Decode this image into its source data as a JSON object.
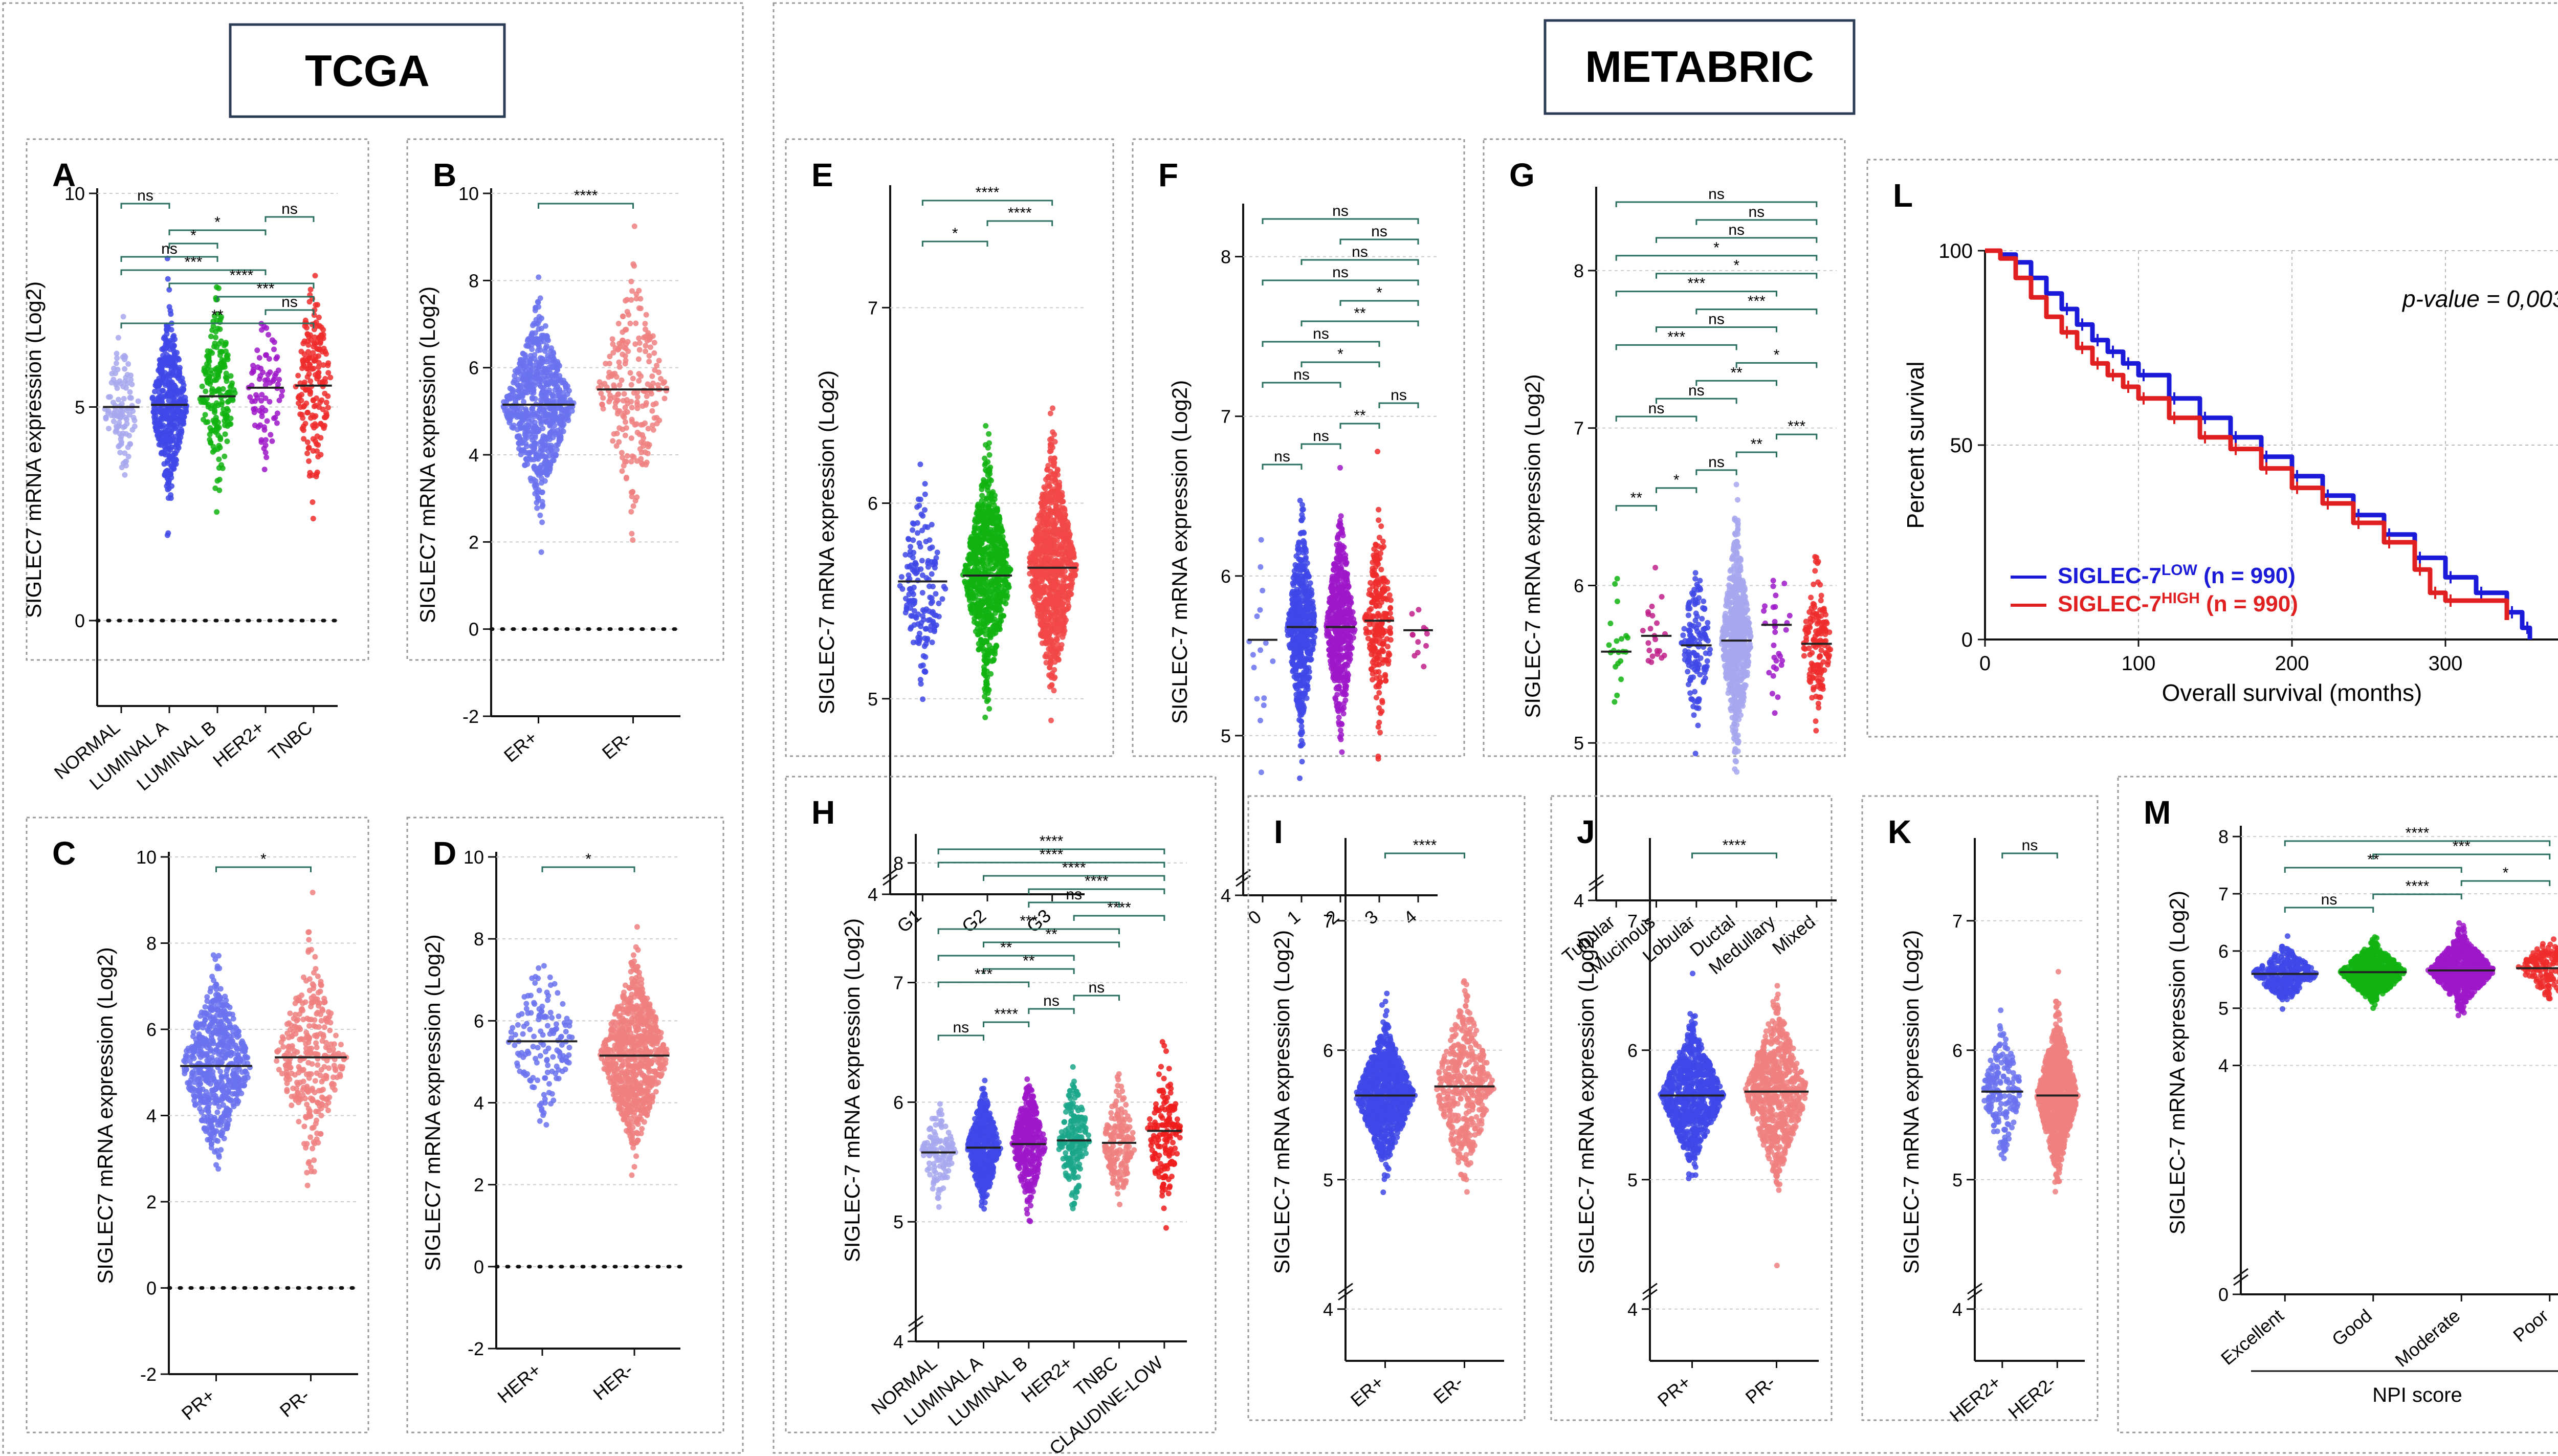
{
  "headers": {
    "tcga": "TCGA",
    "metabric": "METABRIC"
  },
  "colors": {
    "normal": "#a7a7ee",
    "luminal_a": "#3f48e8",
    "luminal_b": "#11b311",
    "her2": "#9e18c9",
    "tnbc": "#ef2c2c",
    "light_blue": "#6a72ee",
    "light_red": "#f08080",
    "g_red": "#f24848",
    "claudin": "#ee1c1c",
    "km_low": "#1a1ad8",
    "km_high": "#e02020",
    "teal": "#1aa68a",
    "pink": "#c0208a"
  },
  "chart_data": [
    {
      "id": "A",
      "type": "scatter",
      "letter": "A",
      "ylabel": "SIGLEC7 mRNA expression (Log2)",
      "ylim": [
        -2,
        10
      ],
      "yticks": [
        0,
        5,
        10
      ],
      "zero_line": true,
      "categories": [
        "NORMAL",
        "LUMINAL A",
        "LUMINAL B",
        "HER2+",
        "TNBC"
      ],
      "medians": [
        5.0,
        5.05,
        5.25,
        5.45,
        5.5
      ],
      "sds": [
        0.8,
        0.9,
        0.95,
        0.9,
        1.1
      ],
      "ns": [
        110,
        480,
        200,
        80,
        190
      ],
      "series_colors": [
        "normal",
        "luminal_a",
        "luminal_b",
        "her2",
        "tnbc"
      ],
      "comparisons": [
        {
          "a": 0,
          "b": 4,
          "label": "**"
        },
        {
          "a": 3,
          "b": 4,
          "label": "ns"
        },
        {
          "a": 2,
          "b": 4,
          "label": "***"
        },
        {
          "a": 1,
          "b": 4,
          "label": "****"
        },
        {
          "a": 0,
          "b": 3,
          "label": "***"
        },
        {
          "a": 0,
          "b": 2,
          "label": "ns"
        },
        {
          "a": 1,
          "b": 2,
          "label": "*"
        },
        {
          "a": 1,
          "b": 3,
          "label": "*"
        },
        {
          "a": 3,
          "b": 4,
          "label": "ns"
        },
        {
          "a": 0,
          "b": 1,
          "label": "ns"
        }
      ]
    },
    {
      "id": "B",
      "type": "scatter",
      "letter": "B",
      "ylabel": "SIGLEC7 mRNA expression (Log2)",
      "ylim": [
        -2,
        10
      ],
      "yticks": [
        -2,
        0,
        2,
        4,
        6,
        8,
        10
      ],
      "zero_line": true,
      "categories": [
        "ER+",
        "ER-"
      ],
      "medians": [
        5.15,
        5.5
      ],
      "sds": [
        0.9,
        1.1
      ],
      "ns": [
        700,
        230
      ],
      "series_colors": [
        "light_blue",
        "light_red"
      ],
      "comparisons": [
        {
          "a": 0,
          "b": 1,
          "label": "****"
        }
      ]
    },
    {
      "id": "C",
      "type": "scatter",
      "letter": "C",
      "ylabel": "SIGLEC7 mRNA expression (Log2)",
      "ylim": [
        -2,
        10
      ],
      "yticks": [
        -2,
        0,
        2,
        4,
        6,
        8,
        10
      ],
      "zero_line": true,
      "categories": [
        "PR+",
        "PR-"
      ],
      "medians": [
        5.15,
        5.35
      ],
      "sds": [
        0.9,
        1.0
      ],
      "ns": [
        600,
        330
      ],
      "series_colors": [
        "light_blue",
        "light_red"
      ],
      "comparisons": [
        {
          "a": 0,
          "b": 1,
          "label": "*"
        }
      ]
    },
    {
      "id": "D",
      "type": "scatter",
      "letter": "D",
      "ylabel": "SIGLEC7 mRNA expression (Log2)",
      "ylim": [
        -2,
        10
      ],
      "yticks": [
        -2,
        0,
        2,
        4,
        6,
        8,
        10
      ],
      "zero_line": true,
      "categories": [
        "HER+",
        "HER-"
      ],
      "medians": [
        5.5,
        5.15
      ],
      "sds": [
        0.9,
        0.95
      ],
      "ns": [
        150,
        780
      ],
      "series_colors": [
        "light_blue",
        "light_red"
      ],
      "comparisons": [
        {
          "a": 0,
          "b": 1,
          "label": "*"
        }
      ]
    },
    {
      "id": "E",
      "type": "scatter",
      "letter": "E",
      "ylabel": "SIGLEC-7 mRNA expression (Log2)",
      "ylim": [
        4,
        7.6
      ],
      "yticks": [
        4,
        5,
        6,
        7
      ],
      "break_axis": true,
      "categories": [
        "G1",
        "G2",
        "G3"
      ],
      "medians": [
        5.6,
        5.63,
        5.67
      ],
      "sds": [
        0.22,
        0.24,
        0.26
      ],
      "ns": [
        160,
        760,
        900
      ],
      "series_colors": [
        "luminal_a",
        "luminal_b",
        "g_red"
      ],
      "comparisons": [
        {
          "a": 0,
          "b": 1,
          "label": "*"
        },
        {
          "a": 1,
          "b": 2,
          "label": "****"
        },
        {
          "a": 0,
          "b": 2,
          "label": "****"
        }
      ]
    },
    {
      "id": "F",
      "type": "scatter",
      "letter": "F",
      "ylabel": "SIGLEC-7 mRNA expression (Log2)",
      "ylim": [
        4,
        8.3
      ],
      "yticks": [
        4,
        5,
        6,
        7,
        8
      ],
      "break_axis": true,
      "categories": [
        "0",
        "1",
        "2",
        "3",
        "4"
      ],
      "medians": [
        5.6,
        5.68,
        5.68,
        5.72,
        5.66
      ],
      "sds": [
        0.25,
        0.28,
        0.28,
        0.28,
        0.15
      ],
      "ns": [
        16,
        560,
        500,
        230,
        12
      ],
      "series_colors": [
        "light_blue",
        "luminal_a",
        "her2",
        "tnbc",
        "pink"
      ],
      "comparisons": [
        {
          "a": 0,
          "b": 1,
          "label": "ns"
        },
        {
          "a": 1,
          "b": 2,
          "label": "ns"
        },
        {
          "a": 2,
          "b": 3,
          "label": "**"
        },
        {
          "a": 3,
          "b": 4,
          "label": "ns"
        },
        {
          "a": 0,
          "b": 2,
          "label": "ns"
        },
        {
          "a": 1,
          "b": 3,
          "label": "*"
        },
        {
          "a": 0,
          "b": 3,
          "label": "ns"
        },
        {
          "a": 1,
          "b": 4,
          "label": "**"
        },
        {
          "a": 2,
          "b": 4,
          "label": "*"
        },
        {
          "a": 0,
          "b": 4,
          "label": "ns"
        },
        {
          "a": 1,
          "b": 4,
          "label": "ns"
        },
        {
          "a": 2,
          "b": 4,
          "label": "ns"
        },
        {
          "a": 0,
          "b": 4,
          "label": "ns"
        }
      ]
    },
    {
      "id": "G",
      "type": "scatter",
      "letter": "G",
      "ylabel": "SIGLEC-7 mRNA expression (Log2)",
      "ylim": [
        4,
        8.5
      ],
      "yticks": [
        4,
        5,
        6,
        7,
        8
      ],
      "break_axis": true,
      "categories": [
        "Tubular",
        "Mucinous",
        "Lobular",
        "Ductal",
        "Medullary",
        "Mixed"
      ],
      "medians": [
        5.58,
        5.68,
        5.62,
        5.65,
        5.75,
        5.63
      ],
      "sds": [
        0.18,
        0.18,
        0.22,
        0.3,
        0.25,
        0.2
      ],
      "ns": [
        20,
        22,
        140,
        700,
        30,
        150
      ],
      "series_colors": [
        "luminal_b",
        "pink",
        "luminal_a",
        "normal",
        "her2",
        "tnbc"
      ],
      "comparisons": [
        {
          "a": 0,
          "b": 1,
          "label": "**"
        },
        {
          "a": 1,
          "b": 2,
          "label": "*"
        },
        {
          "a": 2,
          "b": 3,
          "label": "ns"
        },
        {
          "a": 3,
          "b": 4,
          "label": "**"
        },
        {
          "a": 4,
          "b": 5,
          "label": "***"
        },
        {
          "a": 0,
          "b": 2,
          "label": "ns"
        },
        {
          "a": 1,
          "b": 3,
          "label": "ns"
        },
        {
          "a": 2,
          "b": 4,
          "label": "**"
        },
        {
          "a": 3,
          "b": 5,
          "label": "*"
        },
        {
          "a": 0,
          "b": 3,
          "label": "***"
        },
        {
          "a": 1,
          "b": 4,
          "label": "ns"
        },
        {
          "a": 2,
          "b": 5,
          "label": "***"
        },
        {
          "a": 0,
          "b": 4,
          "label": "***"
        },
        {
          "a": 1,
          "b": 5,
          "label": "*"
        },
        {
          "a": 0,
          "b": 5,
          "label": "*"
        },
        {
          "a": 1,
          "b": 5,
          "label": "ns"
        },
        {
          "a": 2,
          "b": 5,
          "label": "ns"
        },
        {
          "a": 0,
          "b": 5,
          "label": "ns"
        }
      ]
    },
    {
      "id": "H",
      "type": "scatter",
      "letter": "H",
      "ylabel": "SIGLEC-7 mRNA expression (Log2)",
      "ylim": [
        4,
        8.2
      ],
      "yticks": [
        4,
        5,
        6,
        7,
        8
      ],
      "break_axis": true,
      "categories": [
        "NORMAL",
        "LUMINAL A",
        "LUMINAL B",
        "HER2+",
        "TNBC",
        "CLAUDINE-LOW"
      ],
      "medians": [
        5.58,
        5.62,
        5.65,
        5.68,
        5.66,
        5.76
      ],
      "sds": [
        0.18,
        0.2,
        0.22,
        0.22,
        0.22,
        0.3
      ],
      "ns": [
        120,
        480,
        350,
        180,
        170,
        160
      ],
      "series_colors": [
        "normal",
        "luminal_a",
        "her2",
        "teal",
        "light_red",
        "claudin"
      ],
      "comparisons": [
        {
          "a": 0,
          "b": 1,
          "label": "ns"
        },
        {
          "a": 1,
          "b": 2,
          "label": "****"
        },
        {
          "a": 2,
          "b": 3,
          "label": "ns"
        },
        {
          "a": 3,
          "b": 4,
          "label": "ns"
        },
        {
          "a": 0,
          "b": 2,
          "label": "***"
        },
        {
          "a": 1,
          "b": 3,
          "label": "**"
        },
        {
          "a": 0,
          "b": 3,
          "label": "**"
        },
        {
          "a": 1,
          "b": 4,
          "label": "**"
        },
        {
          "a": 0,
          "b": 4,
          "label": "***"
        },
        {
          "a": 3,
          "b": 5,
          "label": "****"
        },
        {
          "a": 2,
          "b": 4,
          "label": "ns"
        },
        {
          "a": 2,
          "b": 5,
          "label": "****"
        },
        {
          "a": 1,
          "b": 5,
          "label": "****"
        },
        {
          "a": 0,
          "b": 5,
          "label": "****"
        },
        {
          "a": 0,
          "b": 5,
          "label": "****"
        }
      ]
    },
    {
      "id": "I",
      "type": "scatter",
      "letter": "I",
      "ylabel": "SIGLEC-7 mRNA expression (Log2)",
      "ylim": [
        3.6,
        7.6
      ],
      "yticks": [
        4,
        5,
        6,
        7
      ],
      "break_axis": true,
      "categories": [
        "ER+",
        "ER-"
      ],
      "medians": [
        5.65,
        5.72
      ],
      "sds": [
        0.22,
        0.3
      ],
      "ns": [
        900,
        430
      ],
      "series_colors": [
        "luminal_a",
        "light_red"
      ],
      "comparisons": [
        {
          "a": 0,
          "b": 1,
          "label": "****"
        }
      ]
    },
    {
      "id": "J",
      "type": "scatter",
      "letter": "J",
      "ylabel": "SIGLEC-7 mRNA expression (Log2)",
      "ylim": [
        3.6,
        7.6
      ],
      "yticks": [
        4,
        5,
        6,
        7
      ],
      "break_axis": true,
      "categories": [
        "PR+",
        "PR-"
      ],
      "medians": [
        5.65,
        5.68
      ],
      "sds": [
        0.22,
        0.28
      ],
      "ns": [
        800,
        700
      ],
      "series_colors": [
        "luminal_a",
        "light_red"
      ],
      "comparisons": [
        {
          "a": 0,
          "b": 1,
          "label": "****"
        }
      ]
    },
    {
      "id": "K",
      "type": "scatter",
      "letter": "K",
      "ylabel": "SIGLEC-7 mRNA expression (Log2)",
      "ylim": [
        3.6,
        7.6
      ],
      "yticks": [
        4,
        5,
        6,
        7
      ],
      "break_axis": true,
      "categories": [
        "HER2+",
        "HER2-"
      ],
      "medians": [
        5.68,
        5.65
      ],
      "sds": [
        0.22,
        0.25
      ],
      "ns": [
        190,
        950
      ],
      "series_colors": [
        "light_blue",
        "light_red"
      ],
      "comparisons": [
        {
          "a": 0,
          "b": 1,
          "label": "ns"
        }
      ]
    },
    {
      "id": "M",
      "type": "scatter",
      "letter": "M",
      "ylabel": "SIGLEC-7 mRNA expression (Log2)",
      "ylim": [
        0,
        8.1
      ],
      "yticks": [
        0,
        4,
        5,
        6,
        7,
        8
      ],
      "break_axis": true,
      "categories": [
        "Excellent",
        "Good",
        "Moderate",
        "Poor"
      ],
      "medians": [
        5.6,
        5.63,
        5.66,
        5.7
      ],
      "sds": [
        0.2,
        0.22,
        0.26,
        0.22
      ],
      "ns": [
        300,
        550,
        700,
        180
      ],
      "series_colors": [
        "luminal_a",
        "luminal_b",
        "her2",
        "tnbc"
      ],
      "xtitle": "NPI score",
      "comparisons": [
        {
          "a": 0,
          "b": 1,
          "label": "ns"
        },
        {
          "a": 1,
          "b": 2,
          "label": "****"
        },
        {
          "a": 2,
          "b": 3,
          "label": "*"
        },
        {
          "a": 0,
          "b": 2,
          "label": "**"
        },
        {
          "a": 1,
          "b": 3,
          "label": "***"
        },
        {
          "a": 0,
          "b": 3,
          "label": "****"
        }
      ]
    },
    {
      "id": "L",
      "type": "line",
      "letter": "L",
      "ylabel": "Percent survival",
      "xlabel": "Overall survival (months)",
      "xlim": [
        0,
        400
      ],
      "ylim": [
        0,
        100
      ],
      "xticks": [
        0,
        100,
        200,
        300,
        400
      ],
      "yticks": [
        0,
        50,
        100
      ],
      "grid": true,
      "annotation": "p-value = 0,0031",
      "series": [
        {
          "name": "SIGLEC-7",
          "sup": "LOW",
          "n_text": "(n = 990)",
          "color": "km_low",
          "x": [
            0,
            10,
            20,
            30,
            40,
            50,
            60,
            70,
            80,
            90,
            100,
            120,
            140,
            160,
            180,
            200,
            220,
            240,
            260,
            280,
            300,
            320,
            340,
            350,
            355
          ],
          "y": [
            100,
            99,
            97,
            93,
            89,
            85,
            81,
            77,
            74,
            71,
            68,
            62,
            57,
            52,
            47,
            42,
            37,
            32,
            27,
            21,
            16,
            12,
            7,
            3,
            0
          ]
        },
        {
          "name": "SIGLEC-7",
          "sup": "HIGH",
          "n_text": "(n = 990)",
          "color": "km_high",
          "x": [
            0,
            10,
            20,
            30,
            40,
            50,
            60,
            70,
            80,
            90,
            100,
            120,
            140,
            160,
            180,
            200,
            220,
            240,
            260,
            280,
            290,
            300,
            340
          ],
          "y": [
            100,
            98,
            93,
            88,
            83,
            79,
            75,
            71,
            68,
            65,
            62,
            57,
            52,
            49,
            44,
            39,
            35,
            30,
            25,
            18,
            12,
            10,
            5
          ]
        }
      ]
    }
  ]
}
